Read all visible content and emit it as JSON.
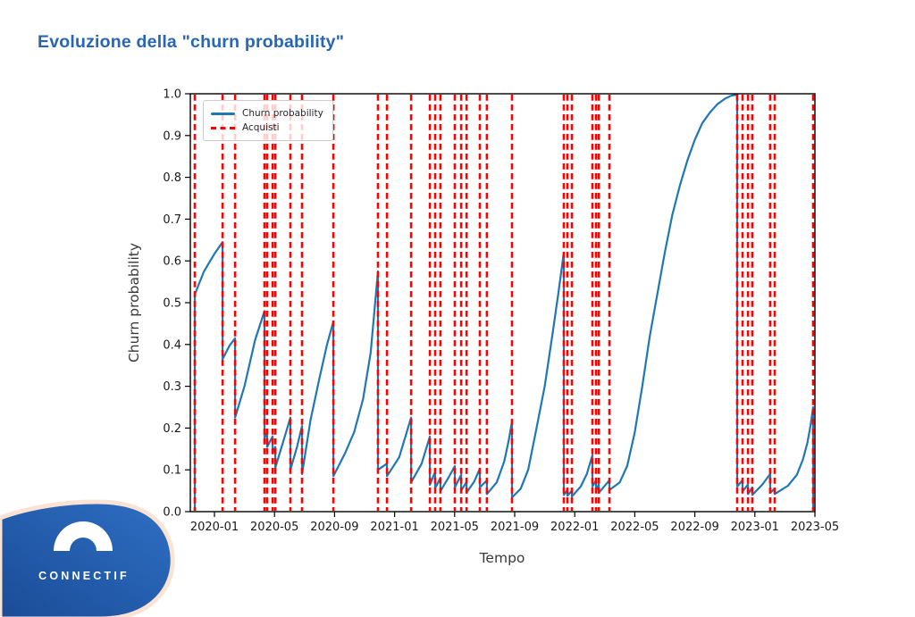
{
  "header": {
    "title": "Evoluzione della \"churn probability\"",
    "title_color": "#2866b4"
  },
  "logo": {
    "text": "CONNECTIF",
    "shape_color_start": "#1a4c97",
    "shape_color_end": "#2f6fc4",
    "outline_color": "#fbe3d4",
    "icon": "arch-icon"
  },
  "chart_data": {
    "type": "line",
    "xlabel": "Tempo",
    "ylabel": "Churn probability",
    "ylim": [
      0.0,
      1.0
    ],
    "x_range_months": [
      -1.61,
      40
    ],
    "grid": false,
    "legend_position": "upper left",
    "legend": [
      {
        "label": "Churn probability",
        "glyph": "solid-line",
        "color": "#1f77b4"
      },
      {
        "label": "Acquisti",
        "glyph": "dashed-line",
        "color": "#ff0000"
      }
    ],
    "x_ticks": [
      {
        "m": 0,
        "label": "2020-01"
      },
      {
        "m": 4,
        "label": "2020-05"
      },
      {
        "m": 8,
        "label": "2020-09"
      },
      {
        "m": 12,
        "label": "2021-01"
      },
      {
        "m": 16,
        "label": "2021-05"
      },
      {
        "m": 20,
        "label": "2021-09"
      },
      {
        "m": 24,
        "label": "2022-01"
      },
      {
        "m": 28,
        "label": "2022-05"
      },
      {
        "m": 32,
        "label": "2022-09"
      },
      {
        "m": 36,
        "label": "2023-01"
      },
      {
        "m": 40,
        "label": "2023-05"
      }
    ],
    "y_ticks": [
      "0.0",
      "0.1",
      "0.2",
      "0.3",
      "0.4",
      "0.5",
      "0.6",
      "0.7",
      "0.8",
      "0.9",
      "1.0"
    ],
    "series": {
      "churn_probability": {
        "name": "Churn probability",
        "color": "#1f77b4",
        "points_months_value": [
          [
            -1.31,
            0.005
          ],
          [
            -1.31,
            0.52
          ],
          [
            -0.7,
            0.575
          ],
          [
            0.0,
            0.617
          ],
          [
            0.54,
            0.645
          ],
          [
            0.54,
            0.365
          ],
          [
            1.0,
            0.397
          ],
          [
            1.37,
            0.415
          ],
          [
            1.37,
            0.225
          ],
          [
            2.0,
            0.3
          ],
          [
            2.7,
            0.41
          ],
          [
            3.33,
            0.48
          ],
          [
            3.33,
            0.175
          ],
          [
            3.51,
            0.19
          ],
          [
            3.51,
            0.155
          ],
          [
            3.87,
            0.18
          ],
          [
            3.87,
            0.14
          ],
          [
            4.05,
            0.155
          ],
          [
            4.05,
            0.105
          ],
          [
            4.6,
            0.17
          ],
          [
            5.06,
            0.225
          ],
          [
            5.06,
            0.1
          ],
          [
            5.5,
            0.155
          ],
          [
            5.83,
            0.205
          ],
          [
            5.83,
            0.09
          ],
          [
            6.4,
            0.22
          ],
          [
            7.0,
            0.32
          ],
          [
            7.5,
            0.4
          ],
          [
            7.92,
            0.455
          ],
          [
            7.92,
            0.085
          ],
          [
            8.7,
            0.14
          ],
          [
            9.3,
            0.19
          ],
          [
            9.9,
            0.27
          ],
          [
            10.4,
            0.38
          ],
          [
            10.89,
            0.575
          ],
          [
            10.89,
            0.1
          ],
          [
            11.49,
            0.115
          ],
          [
            11.49,
            0.085
          ],
          [
            12.3,
            0.13
          ],
          [
            13.1,
            0.225
          ],
          [
            13.1,
            0.07
          ],
          [
            13.8,
            0.115
          ],
          [
            14.35,
            0.18
          ],
          [
            14.35,
            0.064
          ],
          [
            14.7,
            0.096
          ],
          [
            14.7,
            0.056
          ],
          [
            15.05,
            0.081
          ],
          [
            15.05,
            0.049
          ],
          [
            15.6,
            0.082
          ],
          [
            16.01,
            0.109
          ],
          [
            16.01,
            0.058
          ],
          [
            16.43,
            0.088
          ],
          [
            16.43,
            0.05
          ],
          [
            16.79,
            0.071
          ],
          [
            16.79,
            0.045
          ],
          [
            17.3,
            0.072
          ],
          [
            17.68,
            0.103
          ],
          [
            17.68,
            0.058
          ],
          [
            18.15,
            0.075
          ],
          [
            18.15,
            0.042
          ],
          [
            18.8,
            0.07
          ],
          [
            19.3,
            0.12
          ],
          [
            19.6,
            0.17
          ],
          [
            19.82,
            0.216
          ],
          [
            19.82,
            0.034
          ],
          [
            20.4,
            0.055
          ],
          [
            20.9,
            0.1
          ],
          [
            21.43,
            0.195
          ],
          [
            22.0,
            0.3
          ],
          [
            22.5,
            0.42
          ],
          [
            22.9,
            0.52
          ],
          [
            23.27,
            0.62
          ],
          [
            23.27,
            0.04
          ],
          [
            23.51,
            0.052
          ],
          [
            23.51,
            0.038
          ],
          [
            23.81,
            0.05
          ],
          [
            23.81,
            0.036
          ],
          [
            24.4,
            0.06
          ],
          [
            24.8,
            0.09
          ],
          [
            25.18,
            0.135
          ],
          [
            25.18,
            0.06
          ],
          [
            25.42,
            0.075
          ],
          [
            25.42,
            0.05
          ],
          [
            25.6,
            0.065
          ],
          [
            25.6,
            0.045
          ],
          [
            26.31,
            0.075
          ],
          [
            26.31,
            0.052
          ],
          [
            27.0,
            0.07
          ],
          [
            27.5,
            0.11
          ],
          [
            28.0,
            0.19
          ],
          [
            28.5,
            0.3
          ],
          [
            29.0,
            0.42
          ],
          [
            29.5,
            0.52
          ],
          [
            30.0,
            0.62
          ],
          [
            30.5,
            0.71
          ],
          [
            31.0,
            0.78
          ],
          [
            31.5,
            0.84
          ],
          [
            32.0,
            0.89
          ],
          [
            32.5,
            0.93
          ],
          [
            33.0,
            0.955
          ],
          [
            33.5,
            0.975
          ],
          [
            34.0,
            0.988
          ],
          [
            34.4,
            0.995
          ],
          [
            34.82,
            0.998
          ],
          [
            34.82,
            0.06
          ],
          [
            35.18,
            0.075
          ],
          [
            35.18,
            0.048
          ],
          [
            35.54,
            0.065
          ],
          [
            35.54,
            0.042
          ],
          [
            35.83,
            0.058
          ],
          [
            35.83,
            0.04
          ],
          [
            36.5,
            0.065
          ],
          [
            37.02,
            0.09
          ],
          [
            37.02,
            0.045
          ],
          [
            37.32,
            0.055
          ],
          [
            37.32,
            0.042
          ],
          [
            38.2,
            0.062
          ],
          [
            38.8,
            0.088
          ],
          [
            39.2,
            0.125
          ],
          [
            39.5,
            0.165
          ],
          [
            39.7,
            0.205
          ],
          [
            39.88,
            0.25
          ],
          [
            39.88,
            0.005
          ]
        ]
      }
    },
    "purchases": {
      "name": "Acquisti",
      "color": "#ff0000",
      "months": [
        -1.31,
        0.54,
        1.37,
        3.33,
        3.51,
        3.87,
        4.05,
        5.06,
        5.83,
        7.92,
        10.89,
        11.49,
        13.1,
        14.35,
        14.7,
        15.05,
        16.01,
        16.43,
        16.79,
        17.68,
        18.15,
        19.82,
        23.27,
        23.51,
        23.81,
        25.18,
        25.42,
        25.6,
        26.31,
        34.82,
        35.18,
        35.54,
        35.83,
        37.02,
        37.32,
        39.88
      ],
      "dates": [
        "2019-11-22",
        "2020-01-17",
        "2020-02-11",
        "2020-04-11",
        "2020-04-16",
        "2020-04-27",
        "2020-05-02",
        "2020-06-03",
        "2020-06-26",
        "2020-08-29",
        "2020-11-28",
        "2020-12-16",
        "2021-02-04",
        "2021-03-13",
        "2021-03-25",
        "2021-04-03",
        "2021-05-01",
        "2021-05-14",
        "2021-05-25",
        "2021-06-22",
        "2021-07-06",
        "2021-08-27",
        "2021-12-10",
        "2021-12-17",
        "2021-12-26",
        "2022-02-06",
        "2022-02-13",
        "2022-02-19",
        "2022-03-12",
        "2022-11-27",
        "2022-12-08",
        "2022-12-19",
        "2022-12-28",
        "2023-02-02",
        "2023-02-11",
        "2023-04-29"
      ]
    }
  }
}
